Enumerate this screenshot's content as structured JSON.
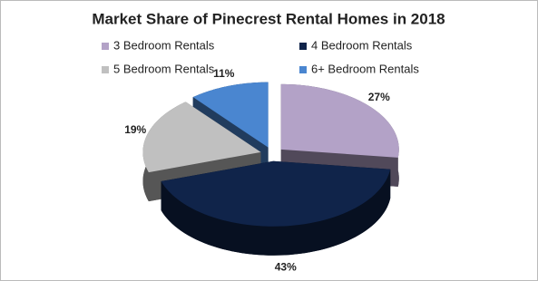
{
  "chart_data": {
    "type": "pie3d",
    "title": "Market Share of Pinecrest Rental Homes in 2018",
    "categories": [
      "3 Bedroom Rentals",
      "4 Bedroom Rentals",
      "5 Bedroom Rentals",
      "6+ Bedroom Rentals"
    ],
    "values": [
      27,
      43,
      19,
      11
    ],
    "value_labels": [
      "27%",
      "43%",
      "19%",
      "11%"
    ],
    "colors": [
      "#b3a2c7",
      "#10244a",
      "#c0c0c0",
      "#4a86d0"
    ]
  }
}
